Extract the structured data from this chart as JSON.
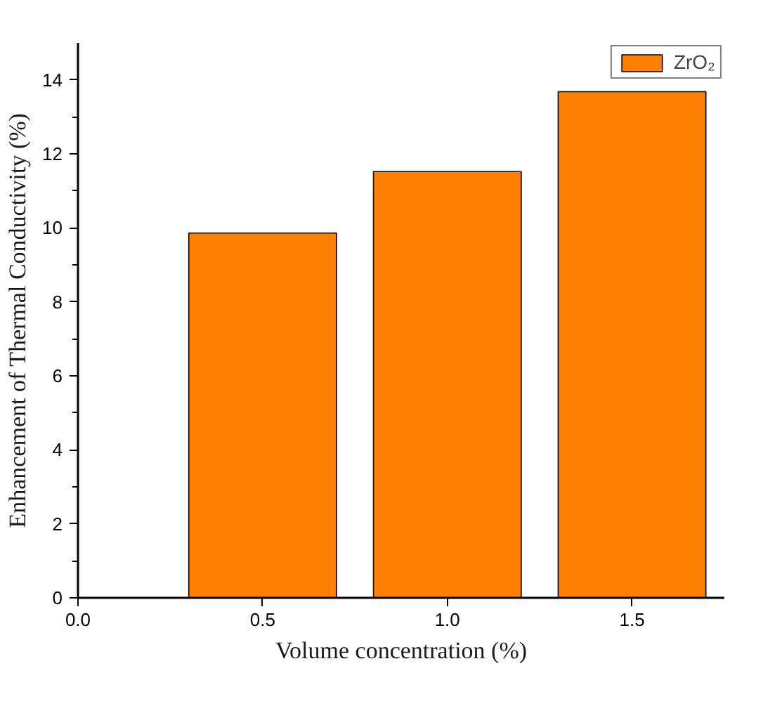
{
  "chart_data": {
    "type": "bar",
    "xlabel": "Volume concentration (%)",
    "ylabel": "Enhancement of Thermal Conductivity (%)",
    "x": [
      0.5,
      1.0,
      1.5
    ],
    "series": [
      {
        "name": "ZrO₂",
        "color": "#ff8000",
        "values": [
          9.86,
          11.52,
          13.68
        ]
      }
    ],
    "xlim": [
      0,
      1.75
    ],
    "xticks": [
      {
        "value": 0,
        "label": "0.0"
      },
      {
        "value": 0.5,
        "label": "0.5"
      },
      {
        "value": 1.0,
        "label": "1.0"
      },
      {
        "value": 1.5,
        "label": "1.5"
      }
    ],
    "ylim": [
      0,
      15
    ],
    "yticks": [
      0,
      2,
      4,
      6,
      8,
      10,
      12,
      14
    ],
    "grid": false,
    "legend": "top right"
  }
}
